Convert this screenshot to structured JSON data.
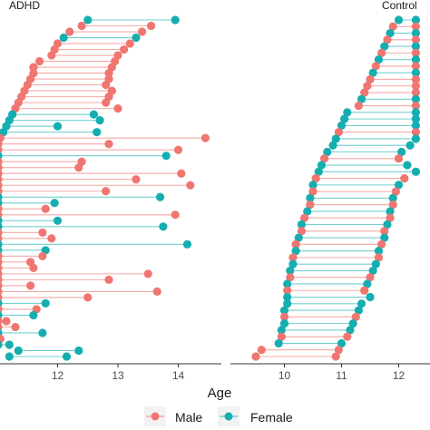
{
  "chart_data": {
    "type": "scatter",
    "style": "dumbbell",
    "xlabel": "Age",
    "legend": {
      "position": "bottom",
      "entries": [
        {
          "name": "Male",
          "color": "#ef7671"
        },
        {
          "name": "Female",
          "color": "#15aeb0"
        }
      ]
    },
    "colors": {
      "Male": "#ef7671",
      "Female": "#15aeb0"
    },
    "panels": [
      {
        "label": "ADHD",
        "ticks": [
          12,
          13,
          14
        ],
        "xlim": [
          10.9,
          14.6
        ],
        "segments": [
          {
            "start": 12.5,
            "end": 13.95,
            "sex": "Female"
          },
          {
            "start": 12.4,
            "end": 13.55,
            "sex": "Male"
          },
          {
            "start": 12.2,
            "end": 13.4,
            "sex": "Male"
          },
          {
            "start": 12.1,
            "end": 13.3,
            "sex": "Female"
          },
          {
            "start": 12.0,
            "end": 13.2,
            "sex": "Male"
          },
          {
            "start": 11.95,
            "end": 13.1,
            "sex": "Male"
          },
          {
            "start": 11.9,
            "end": 13.0,
            "sex": "Male"
          },
          {
            "start": 11.7,
            "end": 12.95,
            "sex": "Male"
          },
          {
            "start": 11.6,
            "end": 12.9,
            "sex": "Male"
          },
          {
            "start": 11.6,
            "end": 12.85,
            "sex": "Male"
          },
          {
            "start": 11.55,
            "end": 12.85,
            "sex": "Male"
          },
          {
            "start": 11.5,
            "end": 12.8,
            "sex": "Male"
          },
          {
            "start": 11.45,
            "end": 12.9,
            "sex": "Male"
          },
          {
            "start": 11.4,
            "end": 12.85,
            "sex": "Male"
          },
          {
            "start": 11.35,
            "end": 12.8,
            "sex": "Male"
          },
          {
            "start": 11.3,
            "end": 13.0,
            "sex": "Male"
          },
          {
            "start": 11.25,
            "end": 12.6,
            "sex": "Female"
          },
          {
            "start": 11.2,
            "end": 12.7,
            "sex": "Female"
          },
          {
            "start": 11.15,
            "end": 12.0,
            "sex": "Female"
          },
          {
            "start": 11.1,
            "end": 12.65,
            "sex": "Female"
          },
          {
            "start": 11.05,
            "end": 14.45,
            "sex": "Male"
          },
          {
            "start": 11.0,
            "end": 12.85,
            "sex": "Male"
          },
          {
            "start": 10.95,
            "end": 14.0,
            "sex": "Male"
          },
          {
            "start": 10.9,
            "end": 13.8,
            "sex": "Female"
          },
          {
            "start": 10.9,
            "end": 12.4,
            "sex": "Male"
          },
          {
            "start": 10.9,
            "end": 12.35,
            "sex": "Male"
          },
          {
            "start": 10.9,
            "end": 14.05,
            "sex": "Male"
          },
          {
            "start": 10.9,
            "end": 13.3,
            "sex": "Male"
          },
          {
            "start": 10.9,
            "end": 14.2,
            "sex": "Male"
          },
          {
            "start": 10.9,
            "end": 12.8,
            "sex": "Male"
          },
          {
            "start": 10.9,
            "end": 13.7,
            "sex": "Female"
          },
          {
            "start": 10.9,
            "end": 11.95,
            "sex": "Female"
          },
          {
            "start": 10.9,
            "end": 11.8,
            "sex": "Male"
          },
          {
            "start": 10.9,
            "end": 13.95,
            "sex": "Male"
          },
          {
            "start": 10.9,
            "end": 12.0,
            "sex": "Female"
          },
          {
            "start": 10.9,
            "end": 13.75,
            "sex": "Female"
          },
          {
            "start": 10.9,
            "end": 11.75,
            "sex": "Male"
          },
          {
            "start": 10.9,
            "end": 11.9,
            "sex": "Male"
          },
          {
            "start": 10.9,
            "end": 14.15,
            "sex": "Female"
          },
          {
            "start": 10.9,
            "end": 11.8,
            "sex": "Female"
          },
          {
            "start": 10.9,
            "end": 11.75,
            "sex": "Male"
          },
          {
            "start": 10.9,
            "end": 11.55,
            "sex": "Male"
          },
          {
            "start": 10.9,
            "end": 11.6,
            "sex": "Male"
          },
          {
            "start": 10.9,
            "end": 13.5,
            "sex": "Male"
          },
          {
            "start": 10.9,
            "end": 12.85,
            "sex": "Male"
          },
          {
            "start": 10.9,
            "end": 11.55,
            "sex": "Male"
          },
          {
            "start": 10.9,
            "end": 13.65,
            "sex": "Male"
          },
          {
            "start": 10.9,
            "end": 12.5,
            "sex": "Male"
          },
          {
            "start": 10.9,
            "end": 11.8,
            "sex": "Female"
          },
          {
            "start": 10.9,
            "end": 11.65,
            "sex": "Male"
          },
          {
            "start": 10.9,
            "end": 11.6,
            "sex": "Female"
          },
          {
            "start": 10.9,
            "end": 11.15,
            "sex": "Male"
          },
          {
            "start": 10.9,
            "end": 11.3,
            "sex": "Male"
          },
          {
            "start": 10.9,
            "end": 11.75,
            "sex": "Female"
          },
          {
            "start": 10.9,
            "end": 11.05,
            "sex": "Male"
          },
          {
            "start": 10.9,
            "end": 11.2,
            "sex": "Female"
          },
          {
            "start": 11.35,
            "end": 12.35,
            "sex": "Female"
          },
          {
            "start": 11.2,
            "end": 12.15,
            "sex": "Female"
          }
        ]
      },
      {
        "label": "Control",
        "ticks": [
          10,
          11,
          12
        ],
        "xlim": [
          9.4,
          12.3
        ],
        "segments": [
          {
            "start": 12.0,
            "end": 12.3,
            "sex": "Female"
          },
          {
            "start": 11.9,
            "end": 12.3,
            "sex": "Male"
          },
          {
            "start": 11.85,
            "end": 12.3,
            "sex": "Female"
          },
          {
            "start": 11.8,
            "end": 12.3,
            "sex": "Male"
          },
          {
            "start": 11.75,
            "end": 12.3,
            "sex": "Female"
          },
          {
            "start": 11.7,
            "end": 12.3,
            "sex": "Male"
          },
          {
            "start": 11.65,
            "end": 12.3,
            "sex": "Female"
          },
          {
            "start": 11.6,
            "end": 12.3,
            "sex": "Male"
          },
          {
            "start": 11.55,
            "end": 12.3,
            "sex": "Female"
          },
          {
            "start": 11.5,
            "end": 12.3,
            "sex": "Male"
          },
          {
            "start": 11.45,
            "end": 12.3,
            "sex": "Male"
          },
          {
            "start": 11.4,
            "end": 12.3,
            "sex": "Male"
          },
          {
            "start": 11.35,
            "end": 12.3,
            "sex": "Female"
          },
          {
            "start": 11.3,
            "end": 12.3,
            "sex": "Male"
          },
          {
            "start": 11.1,
            "end": 12.3,
            "sex": "Female"
          },
          {
            "start": 11.05,
            "end": 12.3,
            "sex": "Female"
          },
          {
            "start": 11.0,
            "end": 12.3,
            "sex": "Female"
          },
          {
            "start": 10.95,
            "end": 12.3,
            "sex": "Male"
          },
          {
            "start": 10.9,
            "end": 12.3,
            "sex": "Female"
          },
          {
            "start": 10.85,
            "end": 12.2,
            "sex": "Female"
          },
          {
            "start": 10.75,
            "end": 12.05,
            "sex": "Female"
          },
          {
            "start": 10.7,
            "end": 12.0,
            "sex": "Male"
          },
          {
            "start": 10.65,
            "end": 12.15,
            "sex": "Female"
          },
          {
            "start": 10.6,
            "end": 12.3,
            "sex": "Female"
          },
          {
            "start": 10.55,
            "end": 12.1,
            "sex": "Male"
          },
          {
            "start": 10.5,
            "end": 12.0,
            "sex": "Female"
          },
          {
            "start": 10.5,
            "end": 11.95,
            "sex": "Male"
          },
          {
            "start": 10.45,
            "end": 11.9,
            "sex": "Female"
          },
          {
            "start": 10.45,
            "end": 11.9,
            "sex": "Male"
          },
          {
            "start": 10.4,
            "end": 11.85,
            "sex": "Female"
          },
          {
            "start": 10.35,
            "end": 11.85,
            "sex": "Male"
          },
          {
            "start": 10.3,
            "end": 11.8,
            "sex": "Female"
          },
          {
            "start": 10.3,
            "end": 11.75,
            "sex": "Male"
          },
          {
            "start": 10.25,
            "end": 11.75,
            "sex": "Female"
          },
          {
            "start": 10.2,
            "end": 11.7,
            "sex": "Male"
          },
          {
            "start": 10.2,
            "end": 11.65,
            "sex": "Female"
          },
          {
            "start": 10.15,
            "end": 11.65,
            "sex": "Male"
          },
          {
            "start": 10.15,
            "end": 11.6,
            "sex": "Female"
          },
          {
            "start": 10.1,
            "end": 11.55,
            "sex": "Female"
          },
          {
            "start": 10.1,
            "end": 11.5,
            "sex": "Male"
          },
          {
            "start": 10.05,
            "end": 11.45,
            "sex": "Female"
          },
          {
            "start": 10.05,
            "end": 11.4,
            "sex": "Male"
          },
          {
            "start": 10.05,
            "end": 11.5,
            "sex": "Female"
          },
          {
            "start": 10.05,
            "end": 11.35,
            "sex": "Female"
          },
          {
            "start": 10.0,
            "end": 11.3,
            "sex": "Female"
          },
          {
            "start": 10.0,
            "end": 11.25,
            "sex": "Male"
          },
          {
            "start": 10.0,
            "end": 11.2,
            "sex": "Female"
          },
          {
            "start": 9.95,
            "end": 11.15,
            "sex": "Female"
          },
          {
            "start": 9.95,
            "end": 11.1,
            "sex": "Male"
          },
          {
            "start": 9.9,
            "end": 11.0,
            "sex": "Female"
          },
          {
            "start": 9.6,
            "end": 10.95,
            "sex": "Male"
          },
          {
            "start": 9.5,
            "end": 10.9,
            "sex": "Male"
          }
        ]
      }
    ]
  }
}
